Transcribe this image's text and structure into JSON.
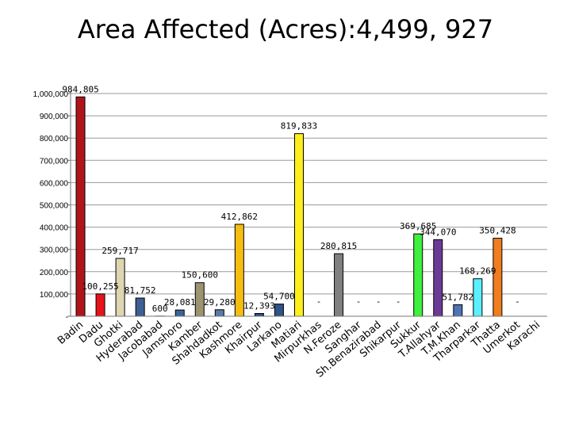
{
  "chart_data": {
    "type": "bar",
    "title": "Area Affected (Acres):4,499, 927",
    "xlabel": "",
    "ylabel": "",
    "ylim": [
      0,
      1000000
    ],
    "yticks": [
      0,
      100000,
      200000,
      300000,
      400000,
      500000,
      600000,
      700000,
      800000,
      900000,
      1000000
    ],
    "ytick_labels": [
      "-",
      "100,000",
      "200,000",
      "300,000",
      "400,000",
      "500,000",
      "600,000",
      "700,000",
      "800,000",
      "900,000",
      "1,000,000"
    ],
    "grid": true,
    "legend": "none",
    "categories": [
      "Badin",
      "Dadu",
      "Ghotki",
      "Hyderabad",
      "Jacobabad",
      "Jamshoro",
      "Kamber",
      "Shahdadkot",
      "Kashmore",
      "Khairpur",
      "Larkano",
      "Matiari",
      "Mirpurkhas",
      "N.Feroze",
      "Sanghar",
      "Sh.Benazirabad",
      "Shikarpur",
      "Sukkur",
      "T.Allahyar",
      "T.M.Khan",
      "Tharparkar",
      "Thatta",
      "Umerkot",
      "Karachi"
    ],
    "values": [
      984805,
      100255,
      259717,
      81752,
      600,
      28081,
      150600,
      29280,
      412862,
      12393,
      54700,
      819833,
      0,
      280815,
      0,
      0,
      0,
      369685,
      344070,
      51782,
      168269,
      350428,
      0,
      0
    ],
    "value_labels": [
      "984,805",
      "100,255",
      "259,717",
      "81,752",
      "600",
      "28,081",
      "150,600",
      "29,280",
      "412,862",
      "12,393",
      "54,700",
      "819,833",
      "-",
      "280,815",
      "-",
      "-",
      "-",
      "369,685",
      "344,070",
      "51,782",
      "168,269",
      "350,428",
      "-",
      ""
    ],
    "colors": [
      "#b0141a",
      "#e8121a",
      "#ddd6b0",
      "#3e5f91",
      "#9f89b6",
      "#3d6496",
      "#9c9470",
      "#5b7aa7",
      "#f5bd10",
      "#2f4f80",
      "#2f5488",
      "#ffee1a",
      "#cccccc",
      "#808080",
      "#cccccc",
      "#cccccc",
      "#cccccc",
      "#3ff03c",
      "#6c3a96",
      "#4f73b5",
      "#5af0ff",
      "#f07d1e",
      "#cccccc",
      "#cccccc"
    ]
  }
}
